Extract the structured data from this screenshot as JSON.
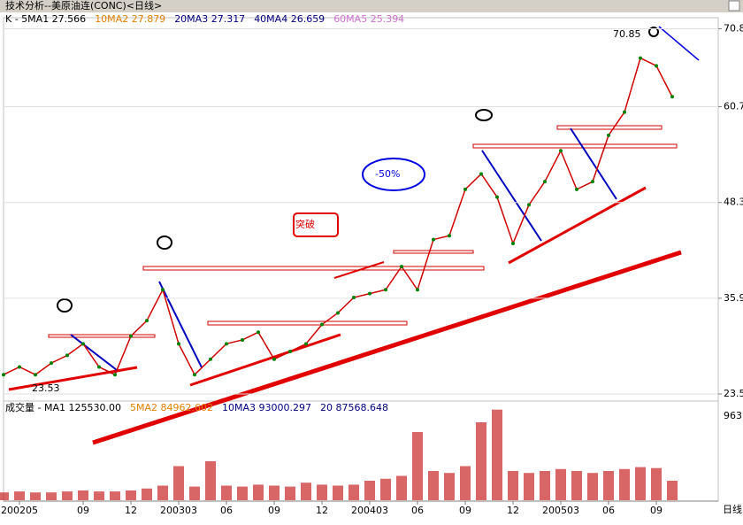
{
  "header": {
    "title": "技术分析--美原油连(CONC)<日线>"
  },
  "indicators": [
    {
      "text": "K - 5MA1 27.566",
      "color": "#000000"
    },
    {
      "text": "10MA2 27.879",
      "color": "#e08000"
    },
    {
      "text": "20MA3 27.317",
      "color": "#000080"
    },
    {
      "text": "40MA4 26.659",
      "color": "#000080"
    },
    {
      "text": "60MA5 25.394",
      "color": "#d070d0"
    }
  ],
  "volume_indicators": [
    {
      "text": "成交量 - MA1 125530.00",
      "color": "#000000"
    },
    {
      "text": "5MA2 84962.602",
      "color": "#e08000"
    },
    {
      "text": "10MA3 93000.297",
      "color": "#000080"
    },
    {
      "text": "20 87568.648",
      "color": "#000080"
    }
  ],
  "chart_data": {
    "type": "line",
    "categories": [
      null,
      "200205",
      null,
      null,
      null,
      "09",
      null,
      null,
      "12",
      null,
      null,
      "200303",
      null,
      null,
      "06",
      null,
      null,
      "09",
      null,
      null,
      "12",
      null,
      null,
      "200403",
      null,
      null,
      "06",
      null,
      null,
      "09",
      null,
      null,
      "12",
      null,
      null,
      "200503",
      null,
      null,
      "06",
      null,
      null,
      "09",
      null
    ],
    "values": [
      26,
      27,
      26,
      27.5,
      28.5,
      30,
      27,
      26,
      31,
      33,
      37,
      30,
      26,
      28,
      30,
      30.5,
      31.5,
      28,
      29,
      30,
      32.5,
      34,
      36,
      36.5,
      37,
      40,
      37,
      43.5,
      44,
      50,
      52,
      49,
      43,
      48,
      51,
      55,
      50,
      51,
      57,
      60,
      67,
      66,
      62
    ],
    "color": "#d00000",
    "ylim": [
      22.7,
      72
    ],
    "yticks": [
      70.8,
      60.7,
      48.3,
      35.9,
      23.5
    ],
    "volume_values": [
      8000,
      9000,
      8000,
      8000,
      9000,
      10000,
      9000,
      9000,
      10000,
      12000,
      15000,
      35000,
      14000,
      40000,
      15000,
      14000,
      16000,
      15000,
      14000,
      18000,
      16000,
      15000,
      16000,
      20000,
      22000,
      25000,
      70000,
      30000,
      28000,
      35000,
      80000,
      93000,
      30000,
      28000,
      30000,
      32000,
      30000,
      28000,
      30000,
      32000,
      34000,
      33000,
      20000
    ],
    "volume_ylim": [
      0,
      100000
    ],
    "volume_color": "#c00000",
    "volume_axis_label": "963",
    "period_label": "日线",
    "high_label": "70.85",
    "low_label": "23.53",
    "breakout_label": "突破",
    "drop_label": "-50%"
  }
}
